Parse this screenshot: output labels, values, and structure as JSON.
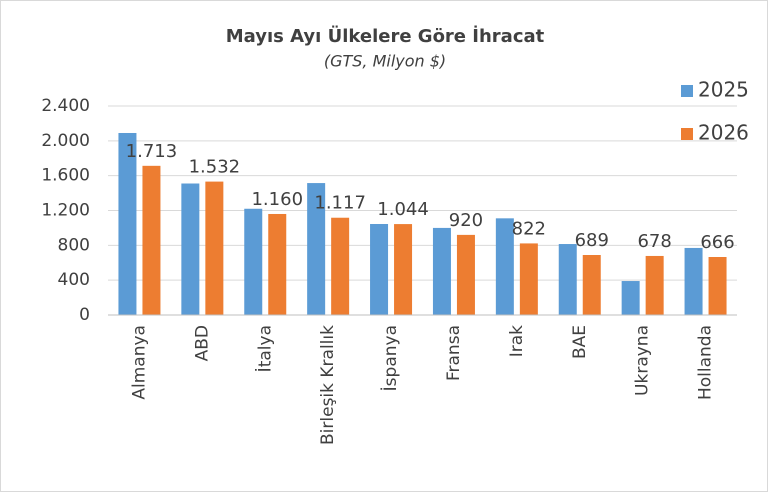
{
  "chart_data": {
    "type": "bar",
    "title": "Mayıs Ayı Ülkelere Göre İhracat",
    "subtitle": "(GTS, Milyon $)",
    "categories": [
      "Almanya",
      "ABD",
      "İtalya",
      "Birleşik Krallık",
      "İspanya",
      "Fransa",
      "Irak",
      "BAE",
      "Ukrayna",
      "Hollanda"
    ],
    "series": [
      {
        "name": "2025",
        "color": "#5b9bd5",
        "values": [
          2090,
          1510,
          1220,
          1515,
          1045,
          1000,
          1110,
          815,
          390,
          770
        ]
      },
      {
        "name": "2026",
        "color": "#ed7d31",
        "values": [
          1713,
          1532,
          1160,
          1117,
          1044,
          920,
          822,
          689,
          678,
          666
        ],
        "value_labels": [
          "1.713",
          "1.532",
          "1.160",
          "1.117",
          "1.044",
          "920",
          "822",
          "689",
          "678",
          "666"
        ]
      }
    ],
    "ylim": [
      0,
      2400
    ],
    "yticks": [
      0,
      400,
      800,
      {
        "value": 1200,
        "label": "1.200"
      },
      {
        "value": 1600,
        "label": "1.600"
      },
      {
        "value": 2000,
        "label": "2.000"
      },
      {
        "value": 2400,
        "label": "2.400"
      }
    ],
    "grid": true,
    "legend": "top-right"
  }
}
